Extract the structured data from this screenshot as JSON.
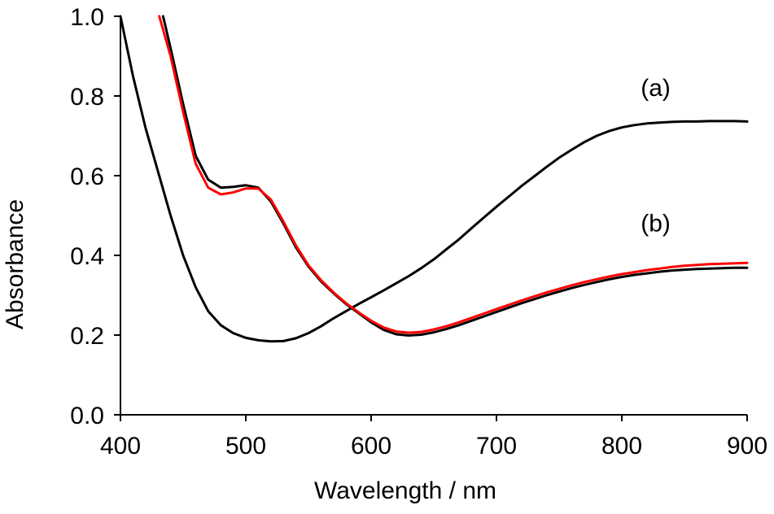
{
  "chart_data": {
    "type": "line",
    "xlabel": "Wavelength / nm",
    "ylabel": "Absorbance",
    "xlim": [
      400,
      900
    ],
    "ylim": [
      0.0,
      1.0
    ],
    "x_ticks": [
      "400",
      "500",
      "600",
      "700",
      "800",
      "900"
    ],
    "y_ticks": [
      "0.0",
      "0.2",
      "0.4",
      "0.6",
      "0.8",
      "1.0"
    ],
    "grid": false,
    "legend": "none",
    "annotations": [
      {
        "text": "(a)",
        "x": 827,
        "y": 0.8
      },
      {
        "text": "(b)",
        "x": 827,
        "y": 0.46
      }
    ],
    "series": [
      {
        "color": "#000000",
        "x": [
          400,
          410,
          420,
          430,
          440,
          450,
          460,
          470,
          480,
          490,
          500,
          510,
          520,
          530,
          540,
          550,
          560,
          570,
          580,
          590,
          600,
          610,
          620,
          630,
          640,
          650,
          660,
          670,
          680,
          690,
          700,
          710,
          720,
          730,
          740,
          750,
          760,
          770,
          780,
          790,
          800,
          810,
          820,
          830,
          840,
          850,
          860,
          870,
          880,
          890,
          900
        ],
        "y": [
          1.0,
          0.85,
          0.72,
          0.61,
          0.5,
          0.4,
          0.32,
          0.26,
          0.225,
          0.205,
          0.193,
          0.187,
          0.184,
          0.185,
          0.192,
          0.205,
          0.222,
          0.242,
          0.26,
          0.278,
          0.295,
          0.312,
          0.33,
          0.348,
          0.368,
          0.39,
          0.415,
          0.44,
          0.468,
          0.495,
          0.522,
          0.548,
          0.574,
          0.598,
          0.622,
          0.645,
          0.665,
          0.684,
          0.7,
          0.712,
          0.721,
          0.727,
          0.731,
          0.733,
          0.735,
          0.736,
          0.736,
          0.737,
          0.737,
          0.737,
          0.736
        ]
      },
      {
        "color": "#000000",
        "x": [
          434,
          440,
          450,
          460,
          470,
          480,
          490,
          500,
          510,
          520,
          530,
          540,
          550,
          560,
          570,
          580,
          590,
          600,
          610,
          620,
          630,
          640,
          650,
          660,
          670,
          680,
          690,
          700,
          710,
          720,
          730,
          740,
          750,
          760,
          770,
          780,
          790,
          800,
          810,
          820,
          830,
          840,
          850,
          860,
          870,
          880,
          890,
          900
        ],
        "y": [
          1.0,
          0.92,
          0.78,
          0.65,
          0.59,
          0.57,
          0.572,
          0.576,
          0.57,
          0.535,
          0.48,
          0.42,
          0.372,
          0.335,
          0.305,
          0.278,
          0.255,
          0.232,
          0.213,
          0.202,
          0.199,
          0.201,
          0.207,
          0.215,
          0.225,
          0.236,
          0.247,
          0.258,
          0.269,
          0.28,
          0.29,
          0.3,
          0.309,
          0.318,
          0.326,
          0.333,
          0.34,
          0.346,
          0.351,
          0.355,
          0.359,
          0.362,
          0.364,
          0.366,
          0.367,
          0.368,
          0.369,
          0.369
        ]
      },
      {
        "color": "#ff0000",
        "x": [
          431,
          440,
          450,
          460,
          470,
          480,
          490,
          500,
          510,
          520,
          530,
          540,
          550,
          560,
          570,
          580,
          590,
          600,
          610,
          620,
          630,
          640,
          650,
          660,
          670,
          680,
          690,
          700,
          710,
          720,
          730,
          740,
          750,
          760,
          770,
          780,
          790,
          800,
          810,
          820,
          830,
          840,
          850,
          860,
          870,
          880,
          890,
          900
        ],
        "y": [
          1.0,
          0.9,
          0.76,
          0.63,
          0.57,
          0.553,
          0.558,
          0.568,
          0.568,
          0.54,
          0.485,
          0.425,
          0.375,
          0.338,
          0.307,
          0.28,
          0.257,
          0.236,
          0.219,
          0.209,
          0.206,
          0.208,
          0.214,
          0.222,
          0.232,
          0.243,
          0.254,
          0.265,
          0.276,
          0.287,
          0.297,
          0.307,
          0.316,
          0.325,
          0.333,
          0.34,
          0.347,
          0.353,
          0.358,
          0.363,
          0.367,
          0.371,
          0.374,
          0.376,
          0.378,
          0.379,
          0.38,
          0.381
        ]
      }
    ]
  }
}
